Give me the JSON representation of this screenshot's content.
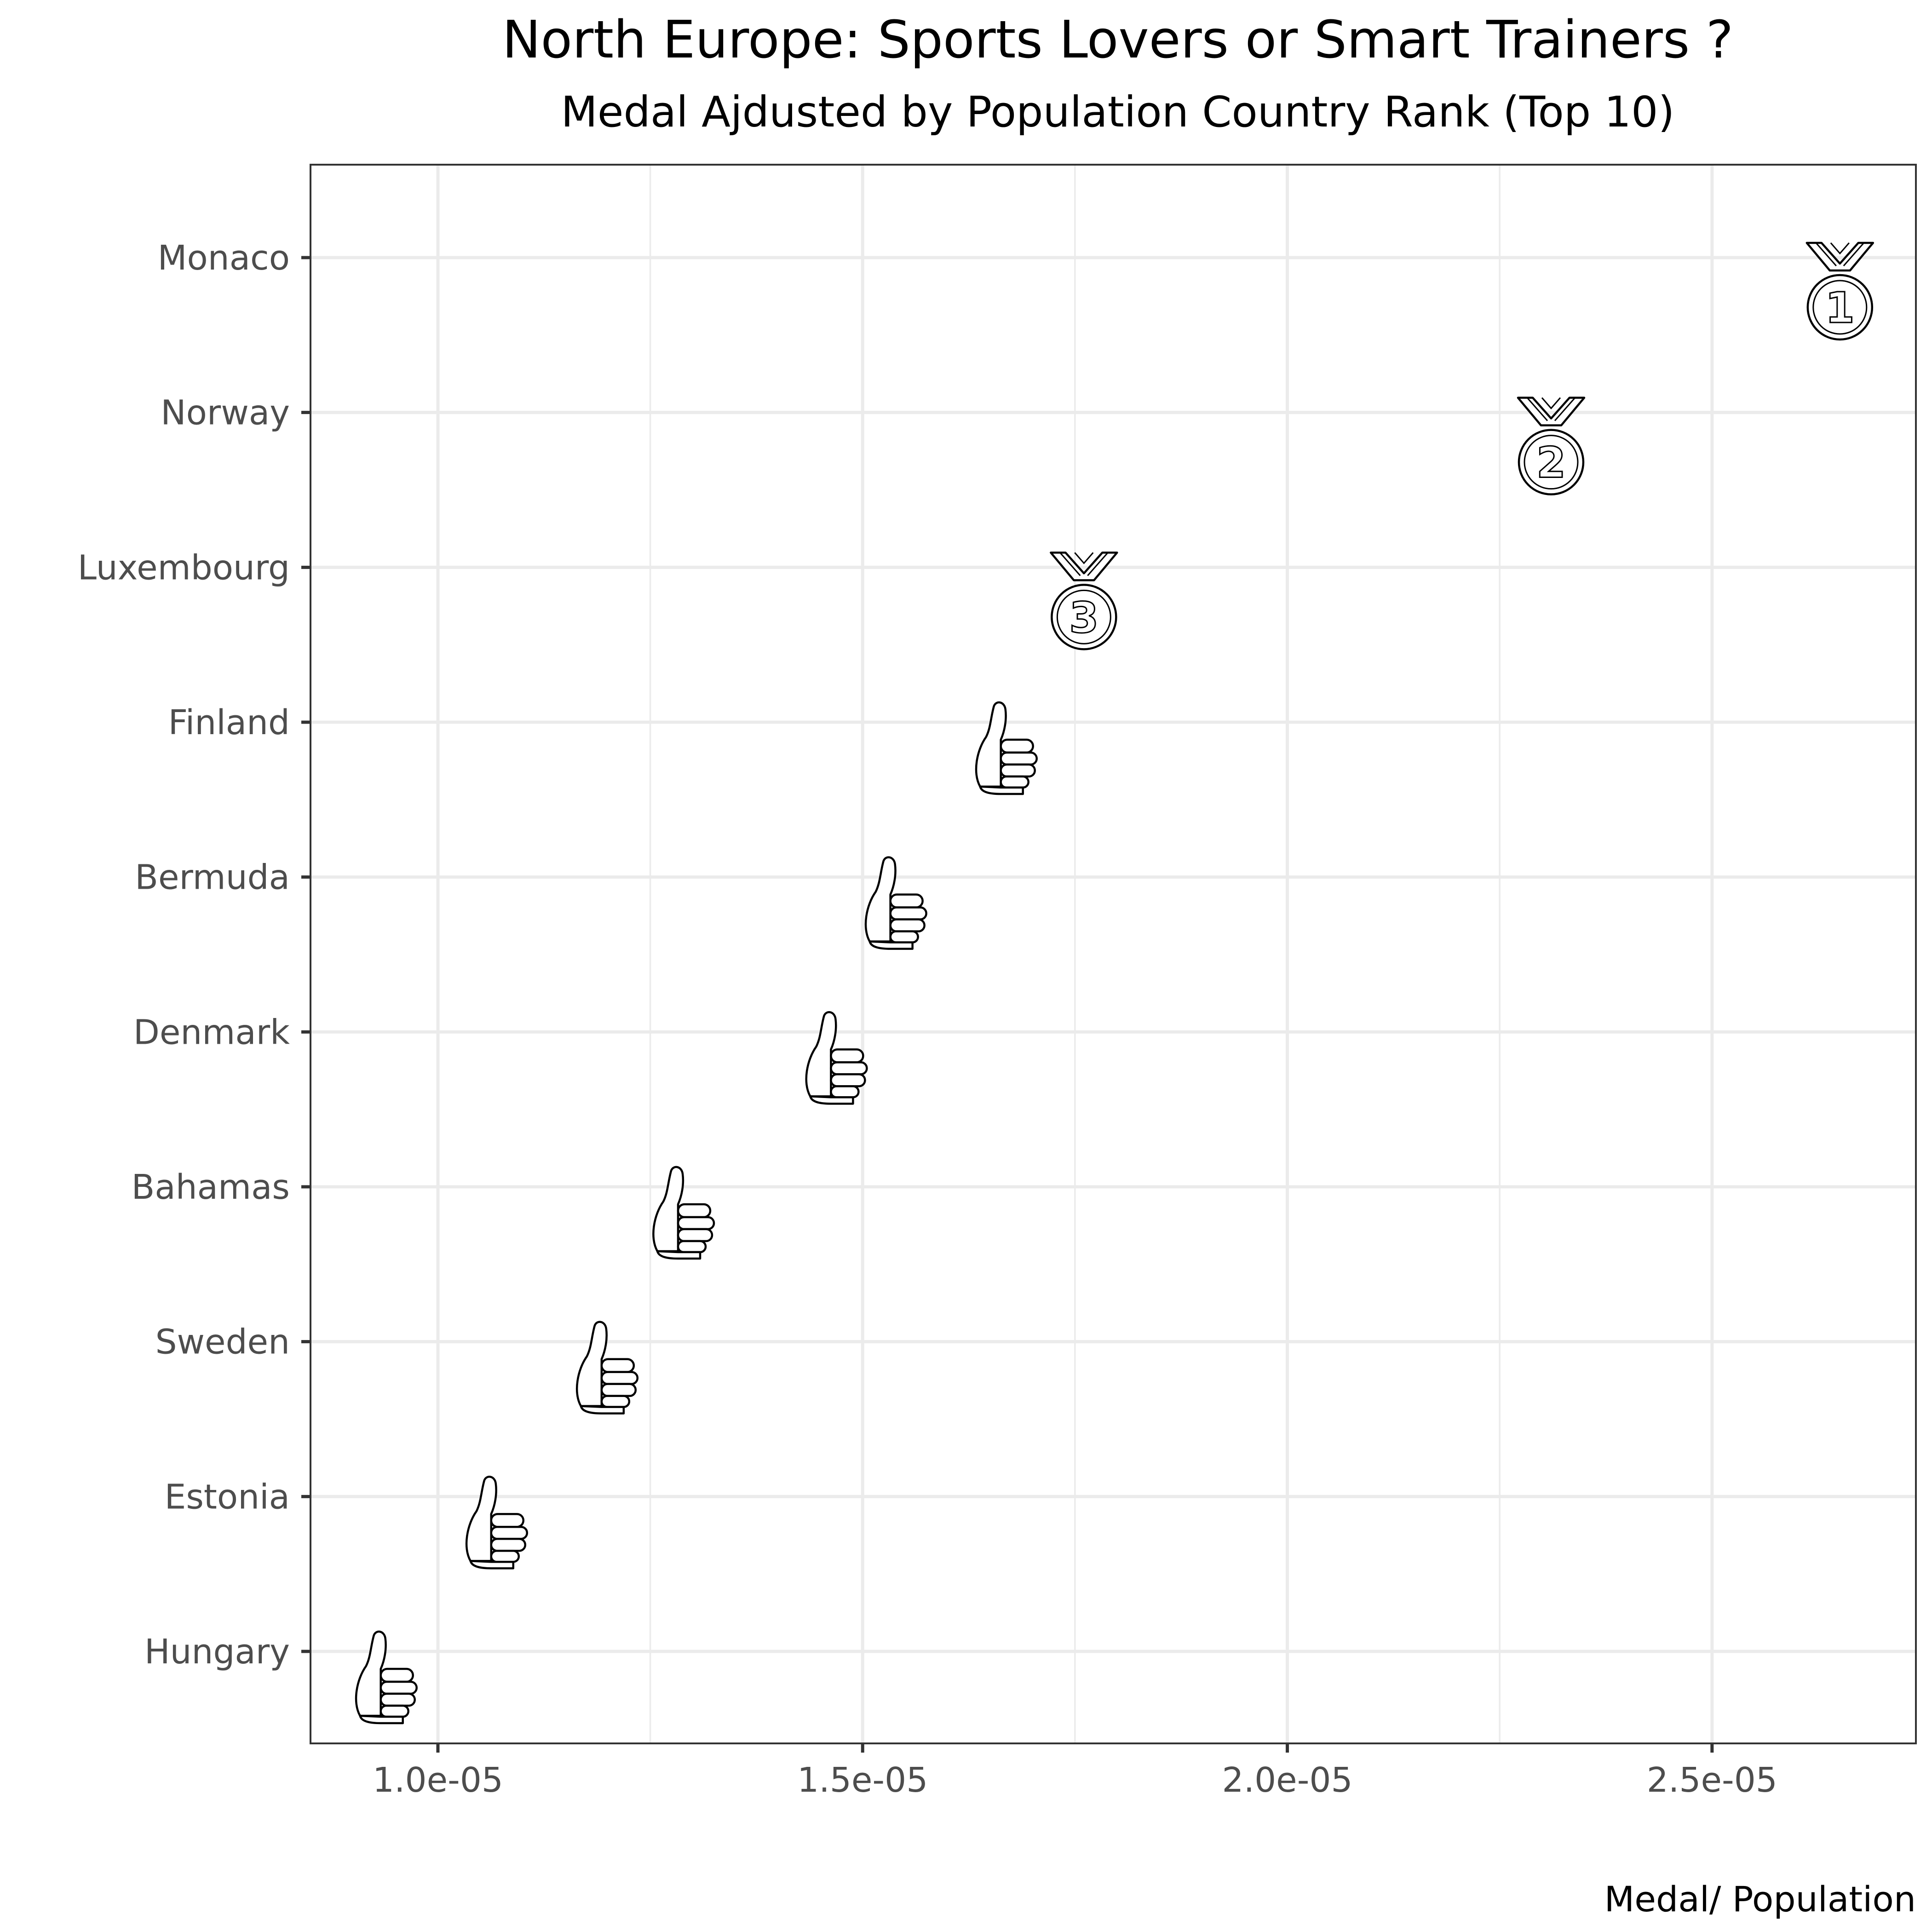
{
  "chart_data": {
    "type": "scatter",
    "title": "North Europe: Sports Lovers or Smart Trainers ?",
    "subtitle": "Medal Ajdusted by Population Country Rank (Top 10)",
    "xlabel": "Medal/ Population",
    "ylabel": "",
    "xlim": [
      8.5e-06,
      2.74e-05
    ],
    "x_ticks": [
      1e-05,
      1.5e-05,
      2e-05,
      2.5e-05
    ],
    "x_tick_labels": [
      "1.0e-05",
      "1.5e-05",
      "2.0e-05",
      "2.5e-05"
    ],
    "categories": [
      "Monaco",
      "Norway",
      "Luxembourg",
      "Finland",
      "Bermuda",
      "Denmark",
      "Bahamas",
      "Sweden",
      "Estonia",
      "Hungary"
    ],
    "values": [
      2.65e-05,
      2.31e-05,
      1.76e-05,
      1.66e-05,
      1.53e-05,
      1.46e-05,
      1.28e-05,
      1.19e-05,
      1.06e-05,
      9.3e-06
    ],
    "markers": [
      "medal-1-icon",
      "medal-2-icon",
      "medal-3-icon",
      "thumbs-up-icon",
      "thumbs-up-icon",
      "thumbs-up-icon",
      "thumbs-up-icon",
      "thumbs-up-icon",
      "thumbs-up-icon",
      "thumbs-up-icon"
    ],
    "medal_numbers": [
      "1",
      "2",
      "3"
    ],
    "grid": true,
    "legend": "none"
  }
}
